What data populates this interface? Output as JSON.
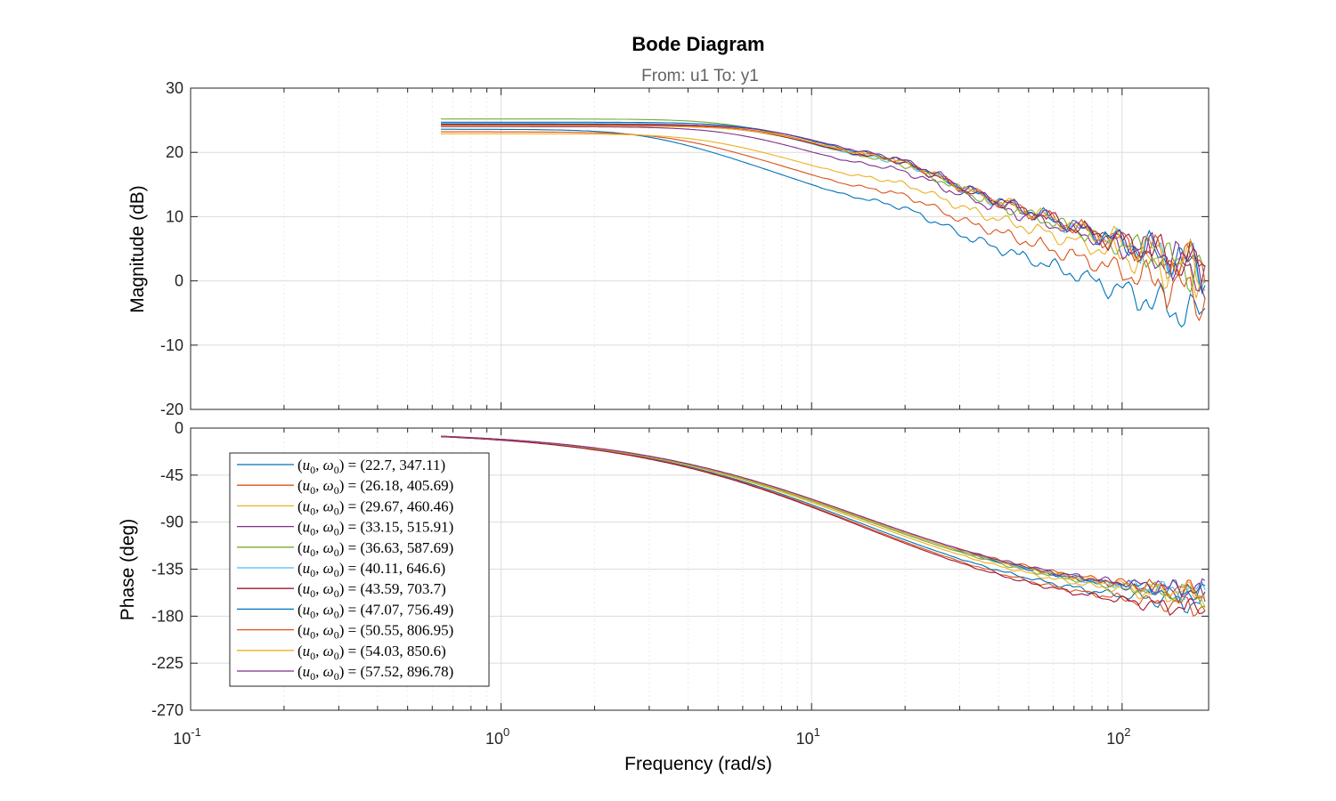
{
  "chart_data": {
    "type": "line",
    "title": "Bode Diagram",
    "subtitle": "From: u1  To: y1",
    "xlabel": "Frequency  (rad/s)",
    "xscale": "log",
    "xlim": [
      0.1,
      190
    ],
    "x_ticks": [
      {
        "base": "10",
        "exp": "-1"
      },
      {
        "base": "10",
        "exp": "0"
      },
      {
        "base": "10",
        "exp": "1"
      },
      {
        "base": "10",
        "exp": "2"
      }
    ],
    "grid": true,
    "legend_position": "lower-left of phase panel",
    "panels": [
      {
        "name": "magnitude",
        "ylabel": "Magnitude (dB)",
        "ylim": [
          -20,
          30
        ],
        "yticks": [
          "30",
          "20",
          "10",
          "0",
          "-10",
          "-20"
        ]
      },
      {
        "name": "phase",
        "ylabel": "Phase (deg)",
        "ylim": [
          -270,
          0
        ],
        "yticks": [
          "0",
          "-45",
          "-90",
          "-135",
          "-180",
          "-225",
          "-270"
        ]
      }
    ],
    "series": [
      {
        "name": "(u0, ω0) = (22.7, 347.11)",
        "label": {
          "lhs": [
            "u",
            "ω"
          ],
          "value": "(22.7, 347.11)"
        },
        "color": "#0072BD",
        "dc_gain_db": 23.6,
        "corner_rad_s": 3.0,
        "mag_at_100_db": -1.5,
        "phase_at_100_deg": -160
      },
      {
        "name": "(u0, ω0) = (26.18, 405.69)",
        "label": {
          "lhs": [
            "u",
            "ω"
          ],
          "value": "(26.18, 405.69)"
        },
        "color": "#D95319",
        "dc_gain_db": 23.2,
        "corner_rad_s": 3.6,
        "mag_at_100_db": 1.5,
        "phase_at_100_deg": -163
      },
      {
        "name": "(u0, ω0) = (29.67, 460.46)",
        "label": {
          "lhs": [
            "u",
            "ω"
          ],
          "value": "(29.67, 460.46)"
        },
        "color": "#EDB120",
        "dc_gain_db": 22.9,
        "corner_rad_s": 4.5,
        "mag_at_100_db": 4.0,
        "phase_at_100_deg": -155
      },
      {
        "name": "(u0, ω0) = (33.15, 515.91)",
        "label": {
          "lhs": [
            "u",
            "ω"
          ],
          "value": "(33.15, 515.91)"
        },
        "color": "#7E2F8E",
        "dc_gain_db": 24.0,
        "corner_rad_s": 5.5,
        "mag_at_100_db": 5.5,
        "phase_at_100_deg": -150
      },
      {
        "name": "(u0, ω0) = (36.63, 587.69)",
        "label": {
          "lhs": [
            "u",
            "ω"
          ],
          "value": "(36.63, 587.69)"
        },
        "color": "#77AC30",
        "dc_gain_db": 25.2,
        "corner_rad_s": 6.0,
        "mag_at_100_db": 5.5,
        "phase_at_100_deg": -152
      },
      {
        "name": "(u0, ω0) = (40.11, 646.6)",
        "label": {
          "lhs": [
            "u",
            "ω"
          ],
          "value": "(40.11, 646.6)"
        },
        "color": "#4DBEEE",
        "dc_gain_db": 24.5,
        "corner_rad_s": 6.5,
        "mag_at_100_db": 6.0,
        "phase_at_100_deg": -150
      },
      {
        "name": "(u0, ω0) = (43.59, 703.7)",
        "label": {
          "lhs": [
            "u",
            "ω"
          ],
          "value": "(43.59, 703.7)"
        },
        "color": "#A2142F",
        "dc_gain_db": 24.2,
        "corner_rad_s": 7.0,
        "mag_at_100_db": 6.0,
        "phase_at_100_deg": -165
      },
      {
        "name": "(u0, ω0) = (47.07, 756.49)",
        "label": {
          "lhs": [
            "u",
            "ω"
          ],
          "value": "(47.07, 756.49)"
        },
        "color": "#0072BD",
        "dc_gain_db": 24.7,
        "corner_rad_s": 7.0,
        "mag_at_100_db": 6.0,
        "phase_at_100_deg": -150
      },
      {
        "name": "(u0, ω0) = (50.55, 806.95)",
        "label": {
          "lhs": [
            "u",
            "ω"
          ],
          "value": "(50.55, 806.95)"
        },
        "color": "#D95319",
        "dc_gain_db": 24.3,
        "corner_rad_s": 7.2,
        "mag_at_100_db": 6.0,
        "phase_at_100_deg": -148
      },
      {
        "name": "(u0, ω0) = (54.03, 850.6)",
        "label": {
          "lhs": [
            "u",
            "ω"
          ],
          "value": "(54.03, 850.6)"
        },
        "color": "#EDB120",
        "dc_gain_db": 24.1,
        "corner_rad_s": 7.4,
        "mag_at_100_db": 6.0,
        "phase_at_100_deg": -150
      },
      {
        "name": "(u0, ω0) = (57.52, 896.78)",
        "label": {
          "lhs": [
            "u",
            "ω"
          ],
          "value": "(57.52, 896.78)"
        },
        "color": "#7E2F8E",
        "dc_gain_db": 24.4,
        "corner_rad_s": 7.6,
        "mag_at_100_db": 6.0,
        "phase_at_100_deg": -148
      }
    ]
  }
}
